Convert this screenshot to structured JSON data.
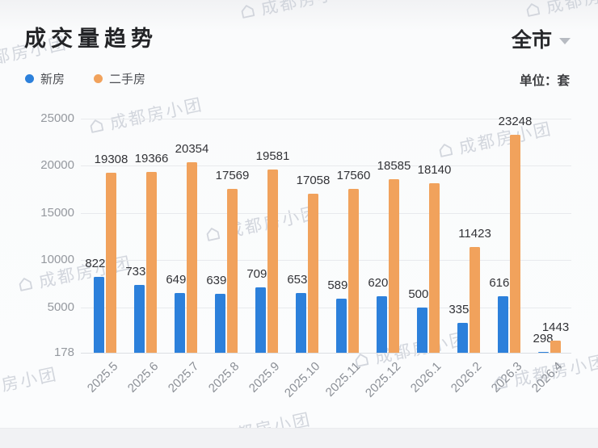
{
  "header": {
    "title": "成交量趋势",
    "region_selector": {
      "label": "全市"
    },
    "unit_label": "单位：套"
  },
  "watermark": {
    "text": "成都房小团"
  },
  "chart_data": {
    "type": "bar",
    "title": "成交量趋势",
    "unit": "套",
    "categories": [
      "2025.5",
      "2025.6",
      "2025.7",
      "2025.8",
      "2025.9",
      "2025.10",
      "2025.11",
      "2025.12",
      "2026.1",
      "2026.2",
      "2026.3",
      "2026.4"
    ],
    "series": [
      {
        "key": "new-homes",
        "name": "新房",
        "color": "#2C80DB",
        "values": [
          8227,
          7336,
          6491,
          6398,
          7093,
          6536,
          5898,
          6203,
          5007,
          3354,
          6165,
          298
        ]
      },
      {
        "key": "resale-homes",
        "name": "二手房",
        "color": "#F1A25C",
        "values": [
          19308,
          19366,
          20354,
          17569,
          19581,
          17058,
          17560,
          18585,
          18140,
          11423,
          23248,
          1443
        ]
      }
    ],
    "yticks": [
      178,
      5000,
      10000,
      15000,
      20000,
      25000
    ],
    "ylim": [
      178,
      25000
    ],
    "grid": true,
    "value_labels": true,
    "legend_position": "top-left",
    "xlabel": "",
    "ylabel": ""
  }
}
